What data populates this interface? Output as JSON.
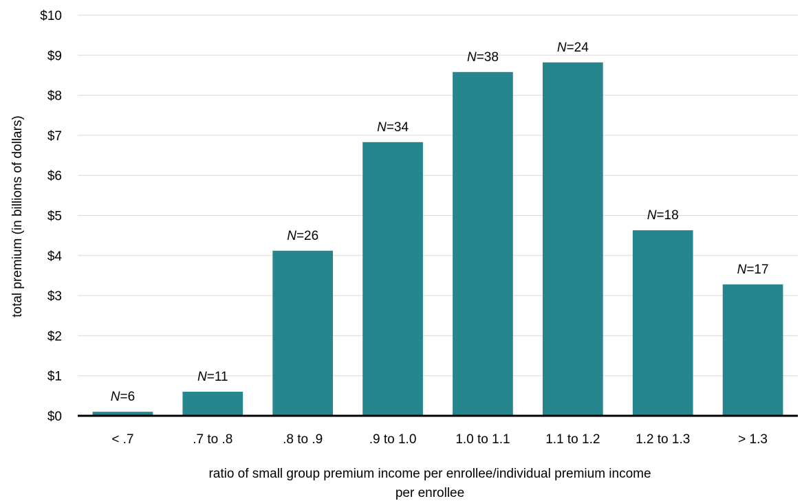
{
  "chart_data": {
    "type": "bar",
    "categories": [
      "< .7",
      ".7 to .8",
      ".8 to .9",
      ".9 to 1.0",
      "1.0 to 1.1",
      "1.1 to 1.2",
      "1.2 to 1.3",
      "> 1.3"
    ],
    "values": [
      0.1,
      0.6,
      4.12,
      6.83,
      8.58,
      8.82,
      4.63,
      3.28
    ],
    "data_labels": [
      {
        "n": "N",
        "eq": "=6"
      },
      {
        "n": "N",
        "eq": "=11"
      },
      {
        "n": "N",
        "eq": "=26"
      },
      {
        "n": "N",
        "eq": "=34"
      },
      {
        "n": "N",
        "eq": "=38"
      },
      {
        "n": "N",
        "eq": "=24"
      },
      {
        "n": "N",
        "eq": "=18"
      },
      {
        "n": "N",
        "eq": "=17"
      }
    ],
    "y_ticks": [
      "$0",
      "$1",
      "$2",
      "$3",
      "$4",
      "$5",
      "$6",
      "$7",
      "$8",
      "$9",
      "$10"
    ],
    "ylim": [
      0,
      10
    ],
    "ylabel": "total premium (in billions of dollars)",
    "xlabel_lines": [
      "ratio of small group premium income per enrollee/individual premium income",
      "per enrollee"
    ],
    "grid": true,
    "legend": "none",
    "colors": {
      "bar": "#27858E",
      "grid": "#D9D9D9",
      "axis": "#000000"
    }
  }
}
